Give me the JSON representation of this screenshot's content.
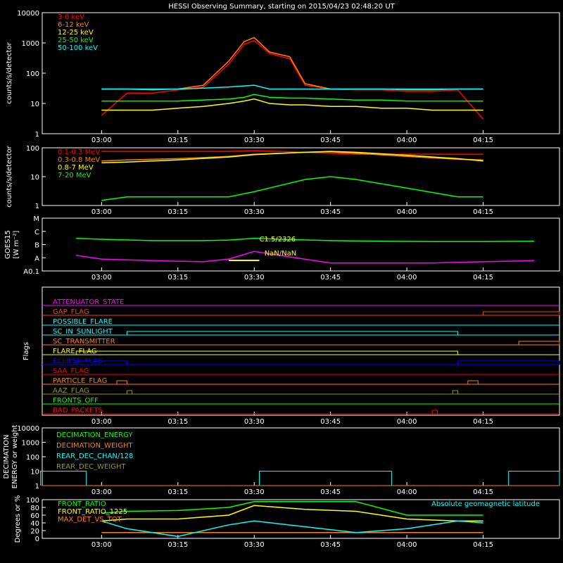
{
  "title": "HESSI Observing Summary, starting on 2015/04/23 02:48:20 UT",
  "time_axis": {
    "ticks": [
      "03:00",
      "03:15",
      "03:30",
      "03:45",
      "04:00",
      "04:15"
    ]
  },
  "colors": {
    "white": "#ffffff",
    "red": "#ff0000",
    "orange": "#ff7f00",
    "yellow": "#ffff00",
    "green": "#00ff00",
    "cyan": "#00ffff",
    "magenta": "#ff00ff",
    "blue": "#0000ff",
    "olive": "#999900",
    "orangered": "#ff4500"
  },
  "chart_data": [
    {
      "id": "xray",
      "type": "line",
      "ylabel": "counts/s/detector",
      "yscale": "log",
      "ylim": [
        1,
        10000
      ],
      "yticks": [
        "1",
        "10",
        "100",
        "1000",
        "10000"
      ],
      "legend_position": "top-left",
      "x": [
        "03:00",
        "03:05",
        "03:10",
        "03:15",
        "03:20",
        "03:25",
        "03:28",
        "03:30",
        "03:33",
        "03:37",
        "03:40",
        "03:45",
        "03:50",
        "03:55",
        "04:00",
        "04:05",
        "04:10",
        "04:15"
      ],
      "series": [
        {
          "name": "3-6 keV",
          "color": "#ff0000",
          "values": [
            4,
            22,
            22,
            28,
            35,
            200,
            900,
            1200,
            450,
            300,
            40,
            30,
            28,
            28,
            25,
            25,
            28,
            3
          ]
        },
        {
          "name": "6-12 keV",
          "color": "#ff7f00",
          "values": [
            30,
            30,
            28,
            30,
            40,
            250,
            1100,
            1500,
            500,
            350,
            45,
            30,
            30,
            30,
            28,
            28,
            30,
            30
          ]
        },
        {
          "name": "12-25 keV",
          "color": "#ffff00",
          "values": [
            6,
            6,
            6,
            7,
            8,
            10,
            12,
            14,
            10,
            9,
            9,
            8,
            8,
            7,
            7,
            6,
            6,
            6
          ]
        },
        {
          "name": "25-50 keV",
          "color": "#00ff00",
          "values": [
            12,
            12,
            12,
            12,
            13,
            14,
            16,
            20,
            16,
            15,
            15,
            14,
            13,
            13,
            12,
            12,
            12,
            12
          ]
        },
        {
          "name": "50-100 keV",
          "color": "#00ffff",
          "values": [
            30,
            30,
            30,
            30,
            32,
            35,
            38,
            40,
            30,
            30,
            30,
            30,
            30,
            30,
            30,
            30,
            30,
            30
          ]
        }
      ]
    },
    {
      "id": "gamma",
      "type": "line",
      "ylabel": "counts/s/detector",
      "yscale": "log",
      "ylim": [
        1,
        100
      ],
      "yticks": [
        "1",
        "10",
        "100"
      ],
      "legend_position": "top-left",
      "x": [
        "03:00",
        "03:05",
        "03:15",
        "03:25",
        "03:30",
        "03:40",
        "03:45",
        "03:50",
        "04:00",
        "04:10",
        "04:15"
      ],
      "series": [
        {
          "name": "0.1-0.3 MeV",
          "color": "#ff0000",
          "values": [
            75,
            75,
            75,
            75,
            80,
            70,
            65,
            60,
            60,
            60,
            60
          ]
        },
        {
          "name": "0.3-0.8 MeV",
          "color": "#ff7f00",
          "values": [
            35,
            38,
            42,
            50,
            60,
            70,
            72,
            65,
            50,
            40,
            38
          ]
        },
        {
          "name": "0.8-7 MeV",
          "color": "#ffff00",
          "values": [
            30,
            32,
            38,
            48,
            58,
            70,
            75,
            70,
            55,
            42,
            35
          ]
        },
        {
          "name": "7-20 MeV",
          "color": "#00ff00",
          "values": [
            1.5,
            2,
            2,
            2,
            3,
            8,
            10,
            8,
            4,
            2,
            2
          ]
        }
      ]
    },
    {
      "id": "goes",
      "type": "line",
      "ylabel": "GOES15",
      "yunits": "[W m⁻²]",
      "yscale": "log",
      "ylim": [
        1e-08,
        0.0001
      ],
      "yticks": [
        "A0.1",
        "A",
        "B",
        "C",
        "M"
      ],
      "annotation": {
        "class_label": "C1.5/2326",
        "position_label": "NaN/NaN"
      },
      "x": [
        "02:55",
        "03:00",
        "03:10",
        "03:20",
        "03:25",
        "03:30",
        "03:35",
        "03:45",
        "03:55",
        "04:05",
        "04:15",
        "04:25"
      ],
      "series": [
        {
          "name": "",
          "color": "#00ff00",
          "values": [
            3e-06,
            2.5e-06,
            2e-06,
            2e-06,
            2.2e-06,
            3e-06,
            2.5e-06,
            2e-06,
            1.8e-06,
            1.7e-06,
            1.7e-06,
            1.8e-06
          ]
        },
        {
          "name": "",
          "color": "#ff00ff",
          "values": [
            1.5e-07,
            8e-08,
            6e-08,
            5e-08,
            8e-08,
            3e-07,
            1.5e-07,
            4e-08,
            4e-08,
            4e-08,
            5e-08,
            6e-08
          ]
        }
      ]
    },
    {
      "id": "flags",
      "type": "line",
      "ylabel": "Flags",
      "series": [
        {
          "name": "ATTENUATOR_STATE",
          "color": "#ff00ff",
          "segments": []
        },
        {
          "name": "GAP_FLAG",
          "color": "#ff4500",
          "segments": [
            [
              "04:15",
              "04:30"
            ]
          ]
        },
        {
          "name": "POSSIBLE_FLARE",
          "color": "#00ffff",
          "segments": []
        },
        {
          "name": "SC_IN_SUNLIGHT",
          "color": "#00ffff",
          "segments": [
            [
              "03:05",
              "04:10"
            ]
          ]
        },
        {
          "name": "SC_TRANSMITTER",
          "color": "#ff7f00",
          "segments": [
            [
              "04:22",
              "04:30"
            ]
          ]
        },
        {
          "name": "FLARE_FLAG",
          "color": "#ffff00",
          "segments": [
            [
              "02:55",
              "04:10"
            ]
          ]
        },
        {
          "name": "ECLIPSE_FLAG",
          "color": "#0000ff",
          "segments": [
            [
              "02:55",
              "03:05"
            ],
            [
              "04:10",
              "04:30"
            ]
          ]
        },
        {
          "name": "SAA_FLAG",
          "color": "#ff0000",
          "segments": []
        },
        {
          "name": "PARTICLE_FLAG",
          "color": "#ff7f00",
          "segments": [
            [
              "03:03",
              "03:05"
            ],
            [
              "04:12",
              "04:14"
            ]
          ]
        },
        {
          "name": "AAZ_FLAG",
          "color": "#999900",
          "segments": [
            [
              "03:05",
              "03:06"
            ],
            [
              "04:09",
              "04:10"
            ]
          ]
        },
        {
          "name": "FRONTS_OFF",
          "color": "#00ff00",
          "segments": []
        },
        {
          "name": "BAD_PACKETS",
          "color": "#ff0000",
          "segments": [
            [
              "04:05",
              "04:06"
            ]
          ]
        }
      ]
    },
    {
      "id": "decimation",
      "type": "line",
      "ylabel": "DECIMATION ENERGY or weight",
      "yscale": "log",
      "ylim": [
        1,
        10000
      ],
      "yticks": [
        "1",
        "10",
        "100",
        "1000",
        "10000"
      ],
      "legend_position": "top-left",
      "series": [
        {
          "name": "DECIMATION_ENERGY",
          "color": "#00ff00",
          "values": []
        },
        {
          "name": "DECIMATION_WEIGHT",
          "color": "#ff7f00",
          "values": []
        },
        {
          "name": "REAR_DEC_CHAN/128",
          "color": "#00ffff",
          "values": []
        },
        {
          "name": "REAR_DEC_WEIGHT",
          "color": "#999900",
          "values": []
        }
      ]
    },
    {
      "id": "ratio",
      "type": "line",
      "ylabel": "Degrees or %",
      "ylim": [
        0,
        100
      ],
      "yticks": [
        "0",
        "20",
        "40",
        "60",
        "80",
        "100"
      ],
      "right_label": "Absolute geomagnetic latitude",
      "x": [
        "03:00",
        "03:05",
        "03:15",
        "03:25",
        "03:30",
        "03:40",
        "03:50",
        "04:00",
        "04:10",
        "04:15"
      ],
      "series": [
        {
          "name": "FRONT_RATIO",
          "color": "#00ff00",
          "values": [
            65,
            70,
            72,
            80,
            95,
            95,
            95,
            60,
            60,
            60
          ]
        },
        {
          "name": "FRONT_RATIO_1225",
          "color": "#ffff00",
          "values": [
            45,
            50,
            50,
            60,
            85,
            75,
            70,
            50,
            45,
            45
          ]
        },
        {
          "name": "MAX_DET_VS_TOT",
          "color": "#ff7f00",
          "values": [
            15,
            15,
            15,
            15,
            15,
            15,
            15,
            15,
            15,
            15
          ]
        },
        {
          "name": "",
          "color": "#00ffff",
          "values": [
            45,
            25,
            5,
            35,
            45,
            30,
            15,
            25,
            45,
            40
          ]
        }
      ]
    }
  ]
}
